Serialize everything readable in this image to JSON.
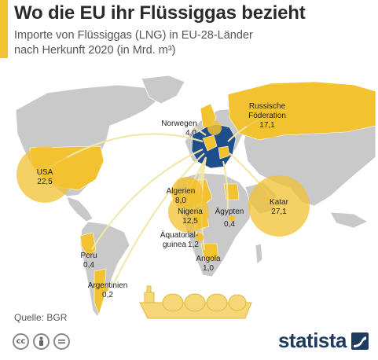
{
  "header": {
    "title": "Wo die EU ihr Flüssiggas bezieht",
    "subtitle_line1": "Importe von Flüssiggas (LNG) in EU-28-Länder",
    "subtitle_line2": "nach Herkunft 2020 (in Mrd. m³)"
  },
  "colors": {
    "accent": "#f2c231",
    "land": "#c8c8c8",
    "bubble": "#f2c231",
    "eu_blue": "#1f4e8c",
    "logo": "#1f3a5f"
  },
  "sources": [
    {
      "name": "USA",
      "value": "22,5"
    },
    {
      "name": "Russische Föderation",
      "name_line1": "Russische",
      "name_line2": "Föderation",
      "value": "17,1"
    },
    {
      "name": "Katar",
      "value": "27,1"
    },
    {
      "name": "Norwegen",
      "value": "4,0"
    },
    {
      "name": "Algerien",
      "value": "8,0"
    },
    {
      "name": "Nigeria",
      "value": "12,5"
    },
    {
      "name": "Ägypten",
      "value": "0,4"
    },
    {
      "name": "Äquatorial-guinea",
      "name_line1": "Äquatorial-",
      "name_line2": "guinea",
      "value": "1,2"
    },
    {
      "name": "Angola",
      "value": "1,0"
    },
    {
      "name": "Peru",
      "value": "0,4"
    },
    {
      "name": "Argentinien",
      "value": "0,2"
    }
  ],
  "footer": {
    "source": "Quelle: BGR",
    "license_icons": [
      "cc-icon",
      "attribution-icon",
      "no-derivatives-icon"
    ],
    "logo_text": "statista"
  }
}
